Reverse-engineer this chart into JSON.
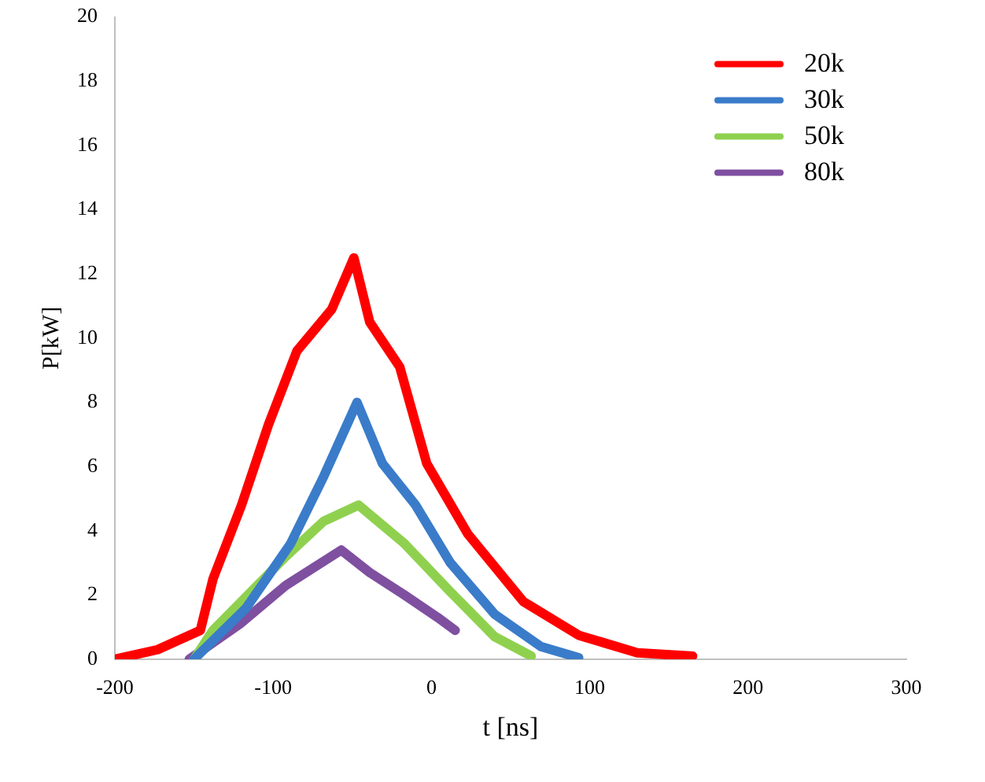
{
  "chart_data": {
    "type": "line",
    "xlabel": "t [ns]",
    "ylabel": "P[kW]",
    "xlim": [
      -200,
      300
    ],
    "xticks": [
      -200,
      -100,
      0,
      100,
      200,
      300
    ],
    "ylim": [
      0,
      20
    ],
    "yticks": [
      0,
      2,
      4,
      6,
      8,
      10,
      12,
      14,
      16,
      18,
      20
    ],
    "grid": false,
    "legend": "top right",
    "marker": "none",
    "line_style": "solid",
    "series": [
      {
        "name": "20k",
        "color": "#ff0000",
        "x": [
          -200,
          -173,
          -146,
          -138,
          -120,
          -103,
          -85,
          -63,
          -49,
          -39,
          -20,
          -3,
          23,
          58,
          93,
          130,
          165
        ],
        "values": [
          0,
          0.3,
          0.9,
          2.5,
          4.8,
          7.3,
          9.6,
          10.9,
          12.5,
          10.5,
          9.1,
          6.1,
          3.9,
          1.8,
          0.75,
          0.2,
          0.1
        ]
      },
      {
        "name": "30k",
        "color": "#3a7cc9",
        "x": [
          -150,
          -117,
          -89,
          -68,
          -47,
          -31,
          -10,
          12,
          40,
          69,
          93
        ],
        "values": [
          0,
          1.6,
          3.6,
          5.7,
          8,
          6.1,
          4.8,
          3,
          1.4,
          0.4,
          0.05
        ]
      },
      {
        "name": "50k",
        "color": "#8fd14f",
        "x": [
          -150,
          -138,
          -92,
          -68,
          -46,
          -17,
          12,
          40,
          63
        ],
        "values": [
          0,
          0.9,
          3.2,
          4.3,
          4.8,
          3.6,
          2.1,
          0.7,
          0.1
        ]
      },
      {
        "name": "80k",
        "color": "#7f4fa0",
        "x": [
          -153,
          -121,
          -92,
          -57,
          -39,
          -17,
          4,
          15
        ],
        "values": [
          0,
          1.1,
          2.3,
          3.4,
          2.7,
          2,
          1.3,
          0.9
        ]
      }
    ]
  }
}
